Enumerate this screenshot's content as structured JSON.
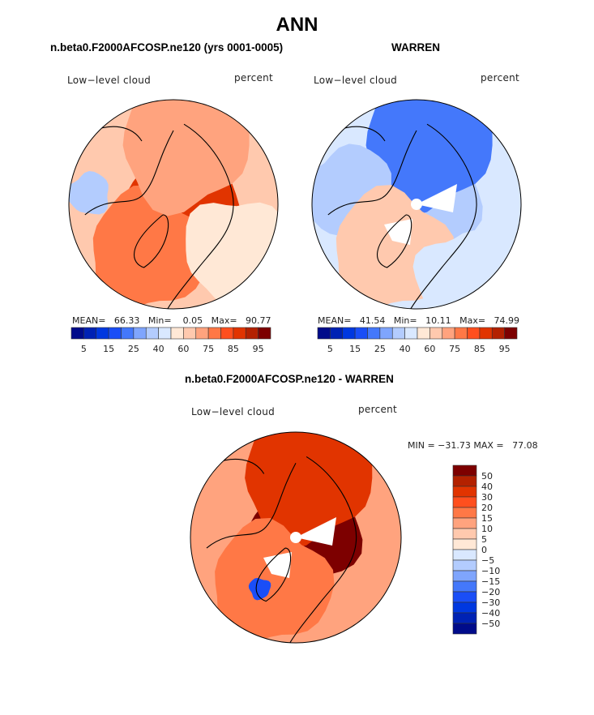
{
  "chart_data": [
    {
      "type": "heatmap",
      "projection": "north-polar-stereographic",
      "title": "n.beta0.F2000AFCOSP.ne120 (yrs 0001-0005)",
      "variable": "Low-level cloud",
      "units": "percent",
      "stats": {
        "mean_label": "MEAN=",
        "mean": "66.33",
        "min_label": "Min=",
        "min": "0.05",
        "max_label": "Max=",
        "max": "90.77"
      },
      "colorbar": {
        "orientation": "horizontal",
        "levels": [
          5,
          10,
          15,
          20,
          25,
          30,
          40,
          50,
          60,
          65,
          75,
          80,
          85,
          90,
          95
        ],
        "tick_labels": [
          "5",
          "15",
          "25",
          "40",
          "60",
          "75",
          "85",
          "95"
        ],
        "colors": [
          "#000b8a",
          "#0022b4",
          "#0038e0",
          "#1a4ef7",
          "#4478fb",
          "#7fa5fd",
          "#b3ccfe",
          "#d9e8ff",
          "#ffe8d6",
          "#ffc9ae",
          "#ffa37e",
          "#ff7846",
          "#ff4f1e",
          "#e13400",
          "#b32100",
          "#7d0000"
        ]
      },
      "regions": [
        {
          "name": "arctic-ocean",
          "level_index": 13
        },
        {
          "name": "greenland-interior",
          "level_index": 5
        },
        {
          "name": "greenland-center",
          "level_index": 1
        },
        {
          "name": "north-atlantic",
          "level_index": 11
        },
        {
          "name": "siberia",
          "level_index": 10
        },
        {
          "name": "eurasia-south",
          "level_index": 8
        },
        {
          "name": "north-america-west",
          "level_index": 6
        }
      ]
    },
    {
      "type": "heatmap",
      "projection": "north-polar-stereographic",
      "title": "WARREN",
      "variable": "Low-level cloud",
      "units": "percent",
      "stats": {
        "mean_label": "MEAN=",
        "mean": "41.54",
        "min_label": "Min=",
        "min": "10.11",
        "max_label": "Max=",
        "max": "74.99"
      },
      "colorbar": {
        "orientation": "horizontal",
        "levels": [
          5,
          10,
          15,
          20,
          25,
          30,
          40,
          50,
          60,
          65,
          75,
          80,
          85,
          90,
          95
        ],
        "tick_labels": [
          "5",
          "15",
          "25",
          "40",
          "60",
          "75",
          "85",
          "95"
        ],
        "colors": [
          "#000b8a",
          "#0022b4",
          "#0038e0",
          "#1a4ef7",
          "#4478fb",
          "#7fa5fd",
          "#b3ccfe",
          "#d9e8ff",
          "#ffe8d6",
          "#ffc9ae",
          "#ffa37e",
          "#ff7846",
          "#ff4f1e",
          "#e13400",
          "#b32100",
          "#7d0000"
        ]
      },
      "regions": [
        {
          "name": "arctic-ocean",
          "level_index": 6
        },
        {
          "name": "siberia",
          "level_index": 4
        },
        {
          "name": "north-america",
          "level_index": 6
        },
        {
          "name": "north-atlantic",
          "level_index": 9
        },
        {
          "name": "europe",
          "level_index": 7
        },
        {
          "name": "missing-data-wedges",
          "level_index": null
        }
      ]
    },
    {
      "type": "heatmap",
      "projection": "north-polar-stereographic",
      "title": "n.beta0.F2000AFCOSP.ne120 - WARREN",
      "variable": "Low-level cloud",
      "units": "percent",
      "stats": {
        "min_label": "MIN =",
        "min": "-31.73",
        "max_label": "MAX =",
        "max": "77.08"
      },
      "colorbar": {
        "orientation": "vertical",
        "levels": [
          -50,
          -40,
          -30,
          -20,
          -15,
          -10,
          -5,
          0,
          5,
          10,
          15,
          20,
          30,
          40,
          50
        ],
        "tick_labels": [
          "50",
          "40",
          "30",
          "20",
          "15",
          "10",
          "5",
          "0",
          "−5",
          "−10",
          "−15",
          "−20",
          "−30",
          "−40",
          "−50"
        ],
        "colors": [
          "#000b8a",
          "#0022b4",
          "#0038e0",
          "#1a4ef7",
          "#4478fb",
          "#7fa5fd",
          "#b3ccfe",
          "#d9e8ff",
          "#ffe8d6",
          "#ffc9ae",
          "#ffa37e",
          "#ff7846",
          "#ff4f1e",
          "#e13400",
          "#b32100",
          "#7d0000"
        ]
      },
      "regions": [
        {
          "name": "arctic-ocean",
          "level_index": 15
        },
        {
          "name": "siberia",
          "level_index": 13
        },
        {
          "name": "north-atlantic",
          "level_index": 11
        },
        {
          "name": "greenland-south",
          "level_index": 3
        },
        {
          "name": "outer-ring",
          "level_index": 10
        },
        {
          "name": "missing-data-wedges",
          "level_index": null
        }
      ]
    }
  ],
  "page": {
    "main_title": "ANN",
    "panels": [
      {
        "title": "n.beta0.F2000AFCOSP.ne120 (yrs 0001-0005)",
        "left_label": "Low−level cloud",
        "right_label": "percent"
      },
      {
        "title": "WARREN",
        "left_label": "Low−level cloud",
        "right_label": "percent"
      },
      {
        "title": "n.beta0.F2000AFCOSP.ne120 - WARREN",
        "left_label": "Low−level cloud",
        "right_label": "percent"
      }
    ],
    "stats_text": [
      "MEAN=   66.33   Min=    0.05   Max=   90.77",
      "MEAN=   41.54   Min=   10.11   Max=   74.99",
      "MIN = −31.73 MAX =   77.08"
    ]
  }
}
